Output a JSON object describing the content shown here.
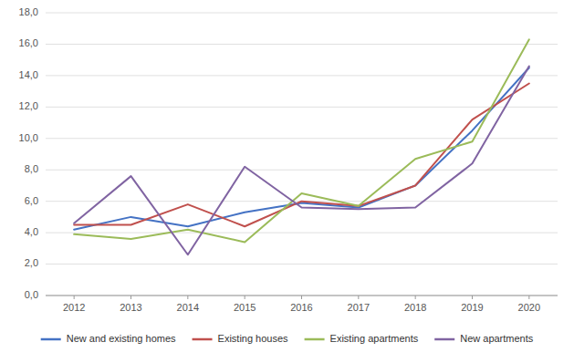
{
  "chart_data": {
    "type": "line",
    "x": [
      2012,
      2013,
      2014,
      2015,
      2016,
      2017,
      2018,
      2019,
      2020
    ],
    "xlim": [
      2011.5,
      2020.5
    ],
    "xticks": [
      2012,
      2013,
      2014,
      2015,
      2016,
      2017,
      2018,
      2019,
      2020
    ],
    "ylim": [
      0,
      18
    ],
    "yticks": [
      {
        "value": 0.0,
        "label": "0,0"
      },
      {
        "value": 2.0,
        "label": "2,0"
      },
      {
        "value": 4.0,
        "label": "4,0"
      },
      {
        "value": 6.0,
        "label": "6,0"
      },
      {
        "value": 8.0,
        "label": "8,0"
      },
      {
        "value": 10.0,
        "label": "10,0"
      },
      {
        "value": 12.0,
        "label": "12,0"
      },
      {
        "value": 14.0,
        "label": "14,0"
      },
      {
        "value": 16.0,
        "label": "16,0"
      },
      {
        "value": 18.0,
        "label": "18,0"
      }
    ],
    "grid": true,
    "legend": "bottom",
    "series": [
      {
        "name": "New and existing homes",
        "color": "#4472C4",
        "values": [
          4.2,
          5.0,
          4.4,
          5.3,
          5.9,
          5.6,
          7.0,
          10.5,
          14.5
        ]
      },
      {
        "name": "Existing houses",
        "color": "#C0504D",
        "values": [
          4.5,
          4.5,
          5.8,
          4.4,
          6.0,
          5.7,
          7.0,
          11.2,
          13.5
        ]
      },
      {
        "name": "Existing apartments",
        "color": "#9BBB59",
        "values": [
          3.9,
          3.6,
          4.2,
          3.4,
          6.5,
          5.7,
          8.7,
          9.8,
          16.3
        ]
      },
      {
        "name": "New apartments",
        "color": "#8064A2",
        "values": [
          4.6,
          7.6,
          2.6,
          8.2,
          5.6,
          5.5,
          5.6,
          8.4,
          14.6
        ]
      }
    ]
  }
}
